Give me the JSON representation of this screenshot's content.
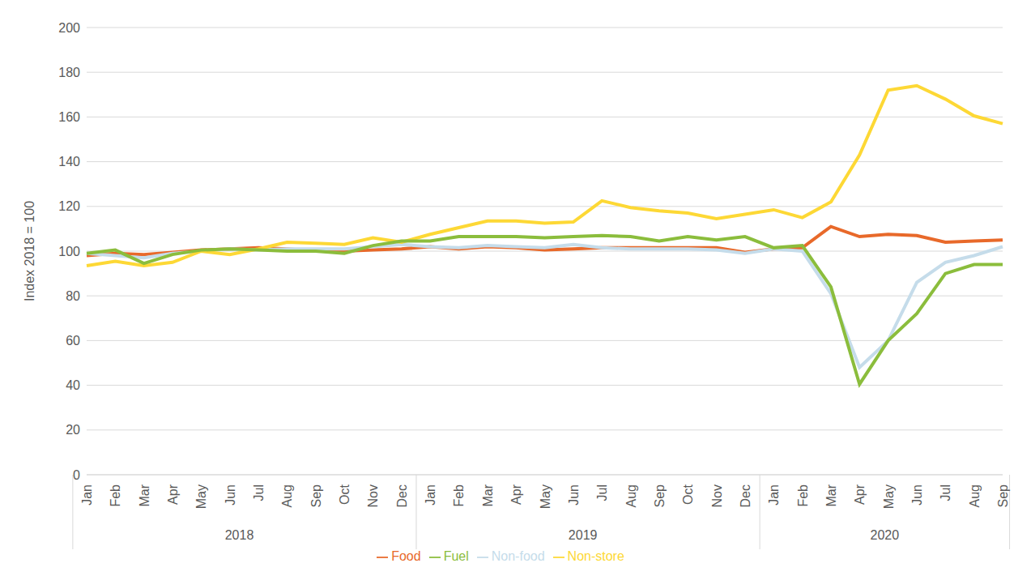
{
  "chart_data": {
    "type": "line",
    "y_label": "Index 2018 = 100",
    "categories": [
      "Jan",
      "Feb",
      "Mar",
      "Apr",
      "May",
      "Jun",
      "Jul",
      "Aug",
      "Sep",
      "Oct",
      "Nov",
      "Dec",
      "Jan",
      "Feb",
      "Mar",
      "Apr",
      "May",
      "Jun",
      "Jul",
      "Aug",
      "Sep",
      "Oct",
      "Nov",
      "Dec",
      "Jan",
      "Feb",
      "Mar",
      "Apr",
      "May",
      "Jun",
      "Jul",
      "Aug",
      "Sep"
    ],
    "category_groups": [
      {
        "label": "2018",
        "span": 12
      },
      {
        "label": "2019",
        "span": 12
      },
      {
        "label": "2020",
        "span": 9
      }
    ],
    "series": [
      {
        "name": "Food",
        "color": "#e8692a",
        "values": [
          98,
          99,
          98.5,
          99.5,
          100.5,
          101,
          101.5,
          101,
          100,
          100,
          100.5,
          101,
          102,
          101,
          102,
          101.5,
          100.5,
          101,
          101.5,
          101.5,
          101.5,
          101.5,
          101.5,
          99.5,
          101,
          101.5,
          111,
          106.5,
          107.5,
          107,
          104,
          104.5,
          105
        ]
      },
      {
        "name": "Non-food",
        "color": "#c5dcea",
        "values": [
          99,
          98,
          97,
          99,
          100,
          101,
          100.5,
          101,
          101,
          101,
          102,
          103,
          102,
          101.5,
          102.5,
          102,
          101.5,
          103,
          101.5,
          101,
          101,
          101,
          100.5,
          99,
          101,
          100,
          81,
          48,
          60,
          86,
          95,
          98,
          102
        ]
      },
      {
        "name": "Non-store",
        "color": "#fdd835",
        "values": [
          93.5,
          95.5,
          93.5,
          95,
          100,
          98.5,
          101,
          104,
          103.5,
          103,
          106,
          104,
          107.5,
          110.5,
          113.5,
          113.5,
          112.5,
          113,
          122.5,
          119.5,
          118,
          117,
          114.5,
          116.5,
          118.5,
          115,
          122,
          143,
          172,
          174,
          168,
          160.5,
          157
        ]
      },
      {
        "name": "Fuel",
        "color": "#8bbd3c",
        "values": [
          99,
          100.5,
          94.5,
          98.5,
          100.5,
          101,
          100.5,
          100,
          100,
          99,
          102.5,
          104.5,
          104.5,
          106.5,
          106.5,
          106.5,
          106,
          106.5,
          107,
          106.5,
          104.5,
          106.5,
          105,
          106.5,
          101.5,
          102.5,
          84,
          40.5,
          60,
          72,
          90,
          94,
          94
        ]
      }
    ],
    "ylim": [
      0,
      200
    ],
    "yticks": [
      0,
      20,
      40,
      60,
      80,
      100,
      120,
      140,
      160,
      180,
      200
    ],
    "grid": true,
    "legend": "bottom"
  }
}
